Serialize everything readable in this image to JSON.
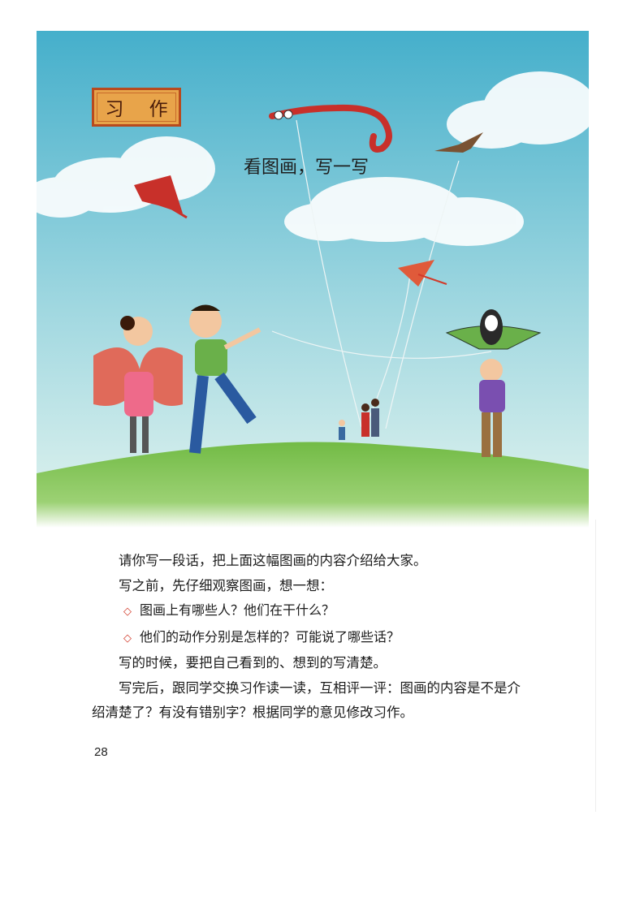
{
  "section_label": "习 作",
  "picture_title": "看图画，写一写",
  "paragraphs": {
    "p1": "请你写一段话，把上面这幅图画的内容介绍给大家。",
    "p2": "写之前，先仔细观察图画，想一想：",
    "q1": "图画上有哪些人？他们在干什么？",
    "q2": "他们的动作分别是怎样的？可能说了哪些话？",
    "p3": "写的时候，要把自己看到的、想到的写清楚。",
    "p4": "写完后，跟同学交换习作读一读，互相评一评：图画的内容是不是介绍清楚了？有没有错别字？根据同学的意见修改习作。"
  },
  "bullet_symbol": "◇",
  "page_number": "28",
  "colors": {
    "sky_top": "#4fb6cf",
    "sky_bottom": "#d8f0ee",
    "grass": "#5fae3a",
    "badge": "#e8a44a",
    "bullet": "#d23a2a"
  }
}
